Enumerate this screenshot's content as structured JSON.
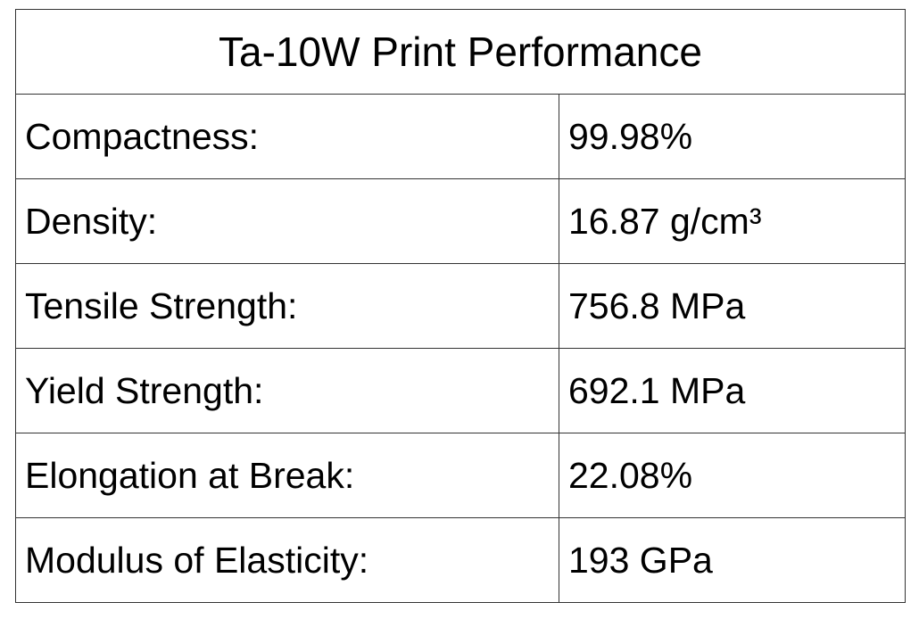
{
  "table": {
    "title": "Ta-10W Print Performance",
    "rows": [
      [
        "Compactness:",
        "99.98%"
      ],
      [
        "Density:",
        "16.87 g/cm³"
      ],
      [
        "Tensile Strength:",
        "756.8 MPa"
      ],
      [
        "Yield Strength:",
        "692.1 MPa"
      ],
      [
        "Elongation at Break:",
        "22.08%"
      ],
      [
        "Modulus of Elasticity:",
        "193 GPa"
      ]
    ]
  }
}
